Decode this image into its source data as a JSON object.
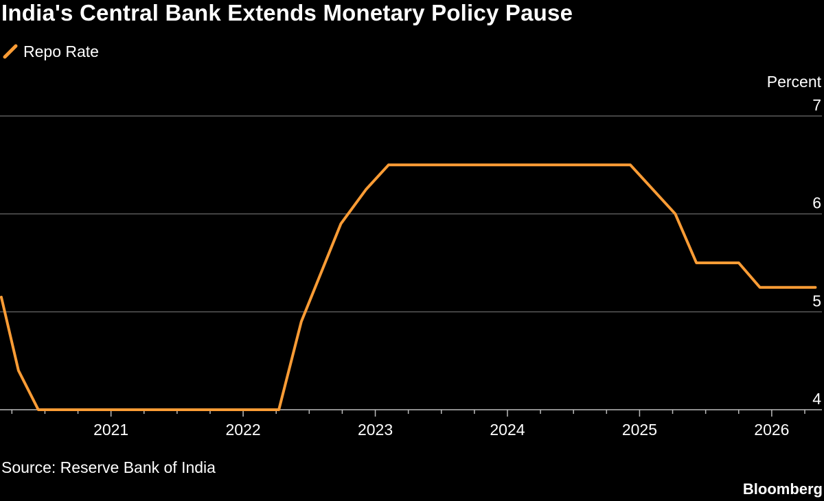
{
  "title": "India's Central Bank Extends Monetary Policy Pause",
  "source": "Source: Reserve Bank of India",
  "brand": "Bloomberg",
  "colors": {
    "background": "#000000",
    "line": "#fb9c35",
    "grid": "#5a5a5a",
    "text": "#ffffff"
  },
  "chart_data": {
    "type": "line",
    "ylabel": "Percent",
    "ylim": [
      4,
      7
    ],
    "yticks": [
      4,
      5,
      6,
      7
    ],
    "xlim": [
      2020.16,
      2026.38
    ],
    "xticks": [
      2021,
      2022,
      2023,
      2024,
      2025,
      2026
    ],
    "xticklabels": [
      "2021",
      "2022",
      "2023",
      "2024",
      "2025",
      "2026"
    ],
    "grid": true,
    "legend": "top-left",
    "series": [
      {
        "name": "Repo Rate",
        "x": [
          2020.17,
          2020.3,
          2020.45,
          2022.27,
          2022.44,
          2022.74,
          2022.93,
          2023.1,
          2024.93,
          2025.27,
          2025.43,
          2025.75,
          2025.91,
          2026.33
        ],
        "y": [
          5.15,
          4.4,
          4.0,
          4.0,
          4.9,
          5.9,
          6.25,
          6.5,
          6.5,
          6.0,
          5.5,
          5.5,
          5.25,
          5.25
        ]
      }
    ]
  }
}
